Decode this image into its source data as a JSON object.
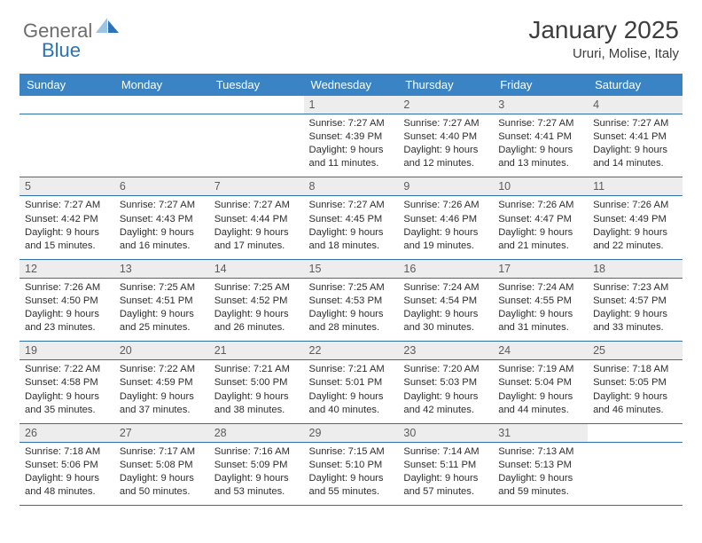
{
  "brand": {
    "part1": "General",
    "part2": "Blue"
  },
  "title": "January 2025",
  "location": "Ururi, Molise, Italy",
  "colors": {
    "header_bg": "#3a84c6",
    "header_fg": "#ffffff",
    "daynum_bg": "#ededed",
    "rule": "#2f6fa9",
    "logo_gray": "#6d6d6d",
    "logo_blue": "#2b74b8"
  },
  "weekdays": [
    "Sunday",
    "Monday",
    "Tuesday",
    "Wednesday",
    "Thursday",
    "Friday",
    "Saturday"
  ],
  "weeks": [
    [
      null,
      null,
      null,
      {
        "n": "1",
        "sr": "7:27 AM",
        "ss": "4:39 PM",
        "dl": "9 hours and 11 minutes."
      },
      {
        "n": "2",
        "sr": "7:27 AM",
        "ss": "4:40 PM",
        "dl": "9 hours and 12 minutes."
      },
      {
        "n": "3",
        "sr": "7:27 AM",
        "ss": "4:41 PM",
        "dl": "9 hours and 13 minutes."
      },
      {
        "n": "4",
        "sr": "7:27 AM",
        "ss": "4:41 PM",
        "dl": "9 hours and 14 minutes."
      }
    ],
    [
      {
        "n": "5",
        "sr": "7:27 AM",
        "ss": "4:42 PM",
        "dl": "9 hours and 15 minutes."
      },
      {
        "n": "6",
        "sr": "7:27 AM",
        "ss": "4:43 PM",
        "dl": "9 hours and 16 minutes."
      },
      {
        "n": "7",
        "sr": "7:27 AM",
        "ss": "4:44 PM",
        "dl": "9 hours and 17 minutes."
      },
      {
        "n": "8",
        "sr": "7:27 AM",
        "ss": "4:45 PM",
        "dl": "9 hours and 18 minutes."
      },
      {
        "n": "9",
        "sr": "7:26 AM",
        "ss": "4:46 PM",
        "dl": "9 hours and 19 minutes."
      },
      {
        "n": "10",
        "sr": "7:26 AM",
        "ss": "4:47 PM",
        "dl": "9 hours and 21 minutes."
      },
      {
        "n": "11",
        "sr": "7:26 AM",
        "ss": "4:49 PM",
        "dl": "9 hours and 22 minutes."
      }
    ],
    [
      {
        "n": "12",
        "sr": "7:26 AM",
        "ss": "4:50 PM",
        "dl": "9 hours and 23 minutes."
      },
      {
        "n": "13",
        "sr": "7:25 AM",
        "ss": "4:51 PM",
        "dl": "9 hours and 25 minutes."
      },
      {
        "n": "14",
        "sr": "7:25 AM",
        "ss": "4:52 PM",
        "dl": "9 hours and 26 minutes."
      },
      {
        "n": "15",
        "sr": "7:25 AM",
        "ss": "4:53 PM",
        "dl": "9 hours and 28 minutes."
      },
      {
        "n": "16",
        "sr": "7:24 AM",
        "ss": "4:54 PM",
        "dl": "9 hours and 30 minutes."
      },
      {
        "n": "17",
        "sr": "7:24 AM",
        "ss": "4:55 PM",
        "dl": "9 hours and 31 minutes."
      },
      {
        "n": "18",
        "sr": "7:23 AM",
        "ss": "4:57 PM",
        "dl": "9 hours and 33 minutes."
      }
    ],
    [
      {
        "n": "19",
        "sr": "7:22 AM",
        "ss": "4:58 PM",
        "dl": "9 hours and 35 minutes."
      },
      {
        "n": "20",
        "sr": "7:22 AM",
        "ss": "4:59 PM",
        "dl": "9 hours and 37 minutes."
      },
      {
        "n": "21",
        "sr": "7:21 AM",
        "ss": "5:00 PM",
        "dl": "9 hours and 38 minutes."
      },
      {
        "n": "22",
        "sr": "7:21 AM",
        "ss": "5:01 PM",
        "dl": "9 hours and 40 minutes."
      },
      {
        "n": "23",
        "sr": "7:20 AM",
        "ss": "5:03 PM",
        "dl": "9 hours and 42 minutes."
      },
      {
        "n": "24",
        "sr": "7:19 AM",
        "ss": "5:04 PM",
        "dl": "9 hours and 44 minutes."
      },
      {
        "n": "25",
        "sr": "7:18 AM",
        "ss": "5:05 PM",
        "dl": "9 hours and 46 minutes."
      }
    ],
    [
      {
        "n": "26",
        "sr": "7:18 AM",
        "ss": "5:06 PM",
        "dl": "9 hours and 48 minutes."
      },
      {
        "n": "27",
        "sr": "7:17 AM",
        "ss": "5:08 PM",
        "dl": "9 hours and 50 minutes."
      },
      {
        "n": "28",
        "sr": "7:16 AM",
        "ss": "5:09 PM",
        "dl": "9 hours and 53 minutes."
      },
      {
        "n": "29",
        "sr": "7:15 AM",
        "ss": "5:10 PM",
        "dl": "9 hours and 55 minutes."
      },
      {
        "n": "30",
        "sr": "7:14 AM",
        "ss": "5:11 PM",
        "dl": "9 hours and 57 minutes."
      },
      {
        "n": "31",
        "sr": "7:13 AM",
        "ss": "5:13 PM",
        "dl": "9 hours and 59 minutes."
      },
      null
    ]
  ],
  "labels": {
    "sunrise": "Sunrise: ",
    "sunset": "Sunset: ",
    "daylight": "Daylight: "
  }
}
